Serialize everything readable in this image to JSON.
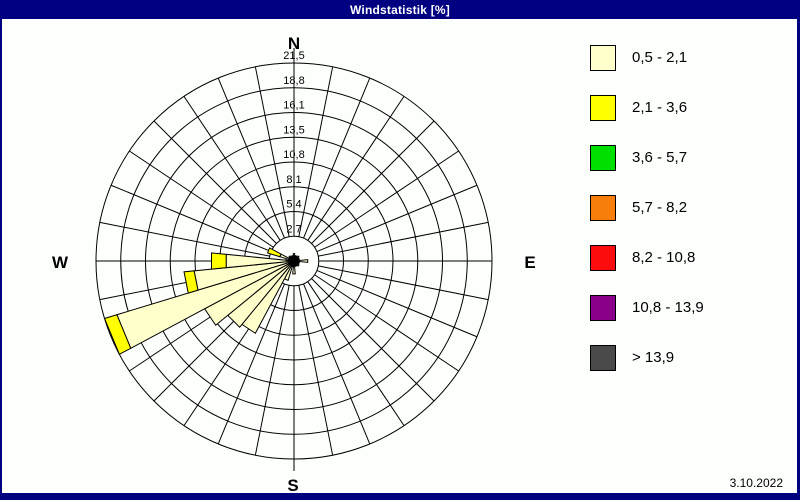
{
  "window": {
    "title": "Windstatistik [%]",
    "date": "3.10.2022"
  },
  "colors": {
    "frame_navy": "#000080",
    "background": "#fdfffd",
    "grid_line": "#000000",
    "class1_pale_yellow": "#ffffcc",
    "class2_yellow": "#ffff00",
    "class3_green": "#00e000",
    "class4_orange": "#f87e0c",
    "class5_red": "#fc0c0c",
    "class6_purple": "#8b008b",
    "class7_gray": "#4a4a4a"
  },
  "compass": {
    "north": "N",
    "east": "E",
    "south": "S",
    "west": "W"
  },
  "legend": {
    "items": [
      {
        "label": "0,5 - 2,1",
        "color": "#ffffcc"
      },
      {
        "label": "2,1 - 3,6",
        "color": "#ffff00"
      },
      {
        "label": "3,6 - 5,7",
        "color": "#00e000"
      },
      {
        "label": "5,7 - 8,2",
        "color": "#f87e0c"
      },
      {
        "label": "8,2 - 10,8",
        "color": "#fc0c0c"
      },
      {
        "label": "10,8 - 13,9",
        "color": "#8b008b"
      },
      {
        "label": "> 13,9",
        "color": "#4a4a4a"
      }
    ]
  },
  "chart_data": {
    "type": "windrose",
    "title": "Windstatistik [%]",
    "units": "percent",
    "sectors": 32,
    "sector_width_deg": 11.25,
    "ring_values": [
      2.7,
      5.4,
      8.1,
      10.8,
      13.5,
      16.1,
      18.8,
      21.5
    ],
    "ring_labels": [
      "2,7",
      "5,4",
      "8,1",
      "10,8",
      "13,5",
      "16,1",
      "18,8",
      "21,5"
    ],
    "ring_max": 21.5,
    "grid": "on",
    "legend_position": "right",
    "speed_class_colors": [
      "#ffffcc",
      "#ffff00"
    ],
    "petals": [
      {
        "dir": 0.0,
        "segments": [
          0.8,
          0
        ]
      },
      {
        "dir": 11.25,
        "segments": [
          0.5,
          0
        ]
      },
      {
        "dir": 22.5,
        "segments": [
          0.6,
          0
        ]
      },
      {
        "dir": 33.75,
        "segments": [
          0.5,
          0
        ]
      },
      {
        "dir": 45.0,
        "segments": [
          0.7,
          0
        ]
      },
      {
        "dir": 56.25,
        "segments": [
          0.5,
          0
        ]
      },
      {
        "dir": 67.5,
        "segments": [
          0.6,
          0
        ]
      },
      {
        "dir": 78.75,
        "segments": [
          0.5,
          0
        ]
      },
      {
        "dir": 90.0,
        "segments": [
          1.5,
          0
        ]
      },
      {
        "dir": 101.25,
        "segments": [
          0.5,
          0
        ]
      },
      {
        "dir": 112.5,
        "segments": [
          0.6,
          0
        ]
      },
      {
        "dir": 123.75,
        "segments": [
          0.5,
          0
        ]
      },
      {
        "dir": 135.0,
        "segments": [
          0.7,
          0
        ]
      },
      {
        "dir": 146.25,
        "segments": [
          0.5,
          0
        ]
      },
      {
        "dir": 157.5,
        "segments": [
          0.6,
          0
        ]
      },
      {
        "dir": 168.75,
        "segments": [
          0.5,
          0
        ]
      },
      {
        "dir": 180.0,
        "segments": [
          1.4,
          0
        ]
      },
      {
        "dir": 191.25,
        "segments": [
          0.6,
          0
        ]
      },
      {
        "dir": 202.5,
        "segments": [
          2.2,
          0
        ]
      },
      {
        "dir": 213.75,
        "segments": [
          8.9,
          0
        ]
      },
      {
        "dir": 225.0,
        "segments": [
          9.3,
          0
        ]
      },
      {
        "dir": 236.25,
        "segments": [
          11.0,
          0
        ]
      },
      {
        "dir": 247.5,
        "segments": [
          20.1,
          1.4
        ]
      },
      {
        "dir": 258.75,
        "segments": [
          10.9,
          1.1
        ]
      },
      {
        "dir": 270.0,
        "segments": [
          7.4,
          1.6
        ]
      },
      {
        "dir": 281.25,
        "segments": [
          0.9,
          0
        ]
      },
      {
        "dir": 292.5,
        "segments": [
          1.6,
          1.4
        ]
      },
      {
        "dir": 303.75,
        "segments": [
          0.6,
          0
        ]
      },
      {
        "dir": 315.0,
        "segments": [
          0.7,
          0
        ]
      },
      {
        "dir": 326.25,
        "segments": [
          0.5,
          0
        ]
      },
      {
        "dir": 337.5,
        "segments": [
          0.6,
          0
        ]
      },
      {
        "dir": 348.75,
        "segments": [
          0.5,
          0
        ]
      }
    ]
  }
}
